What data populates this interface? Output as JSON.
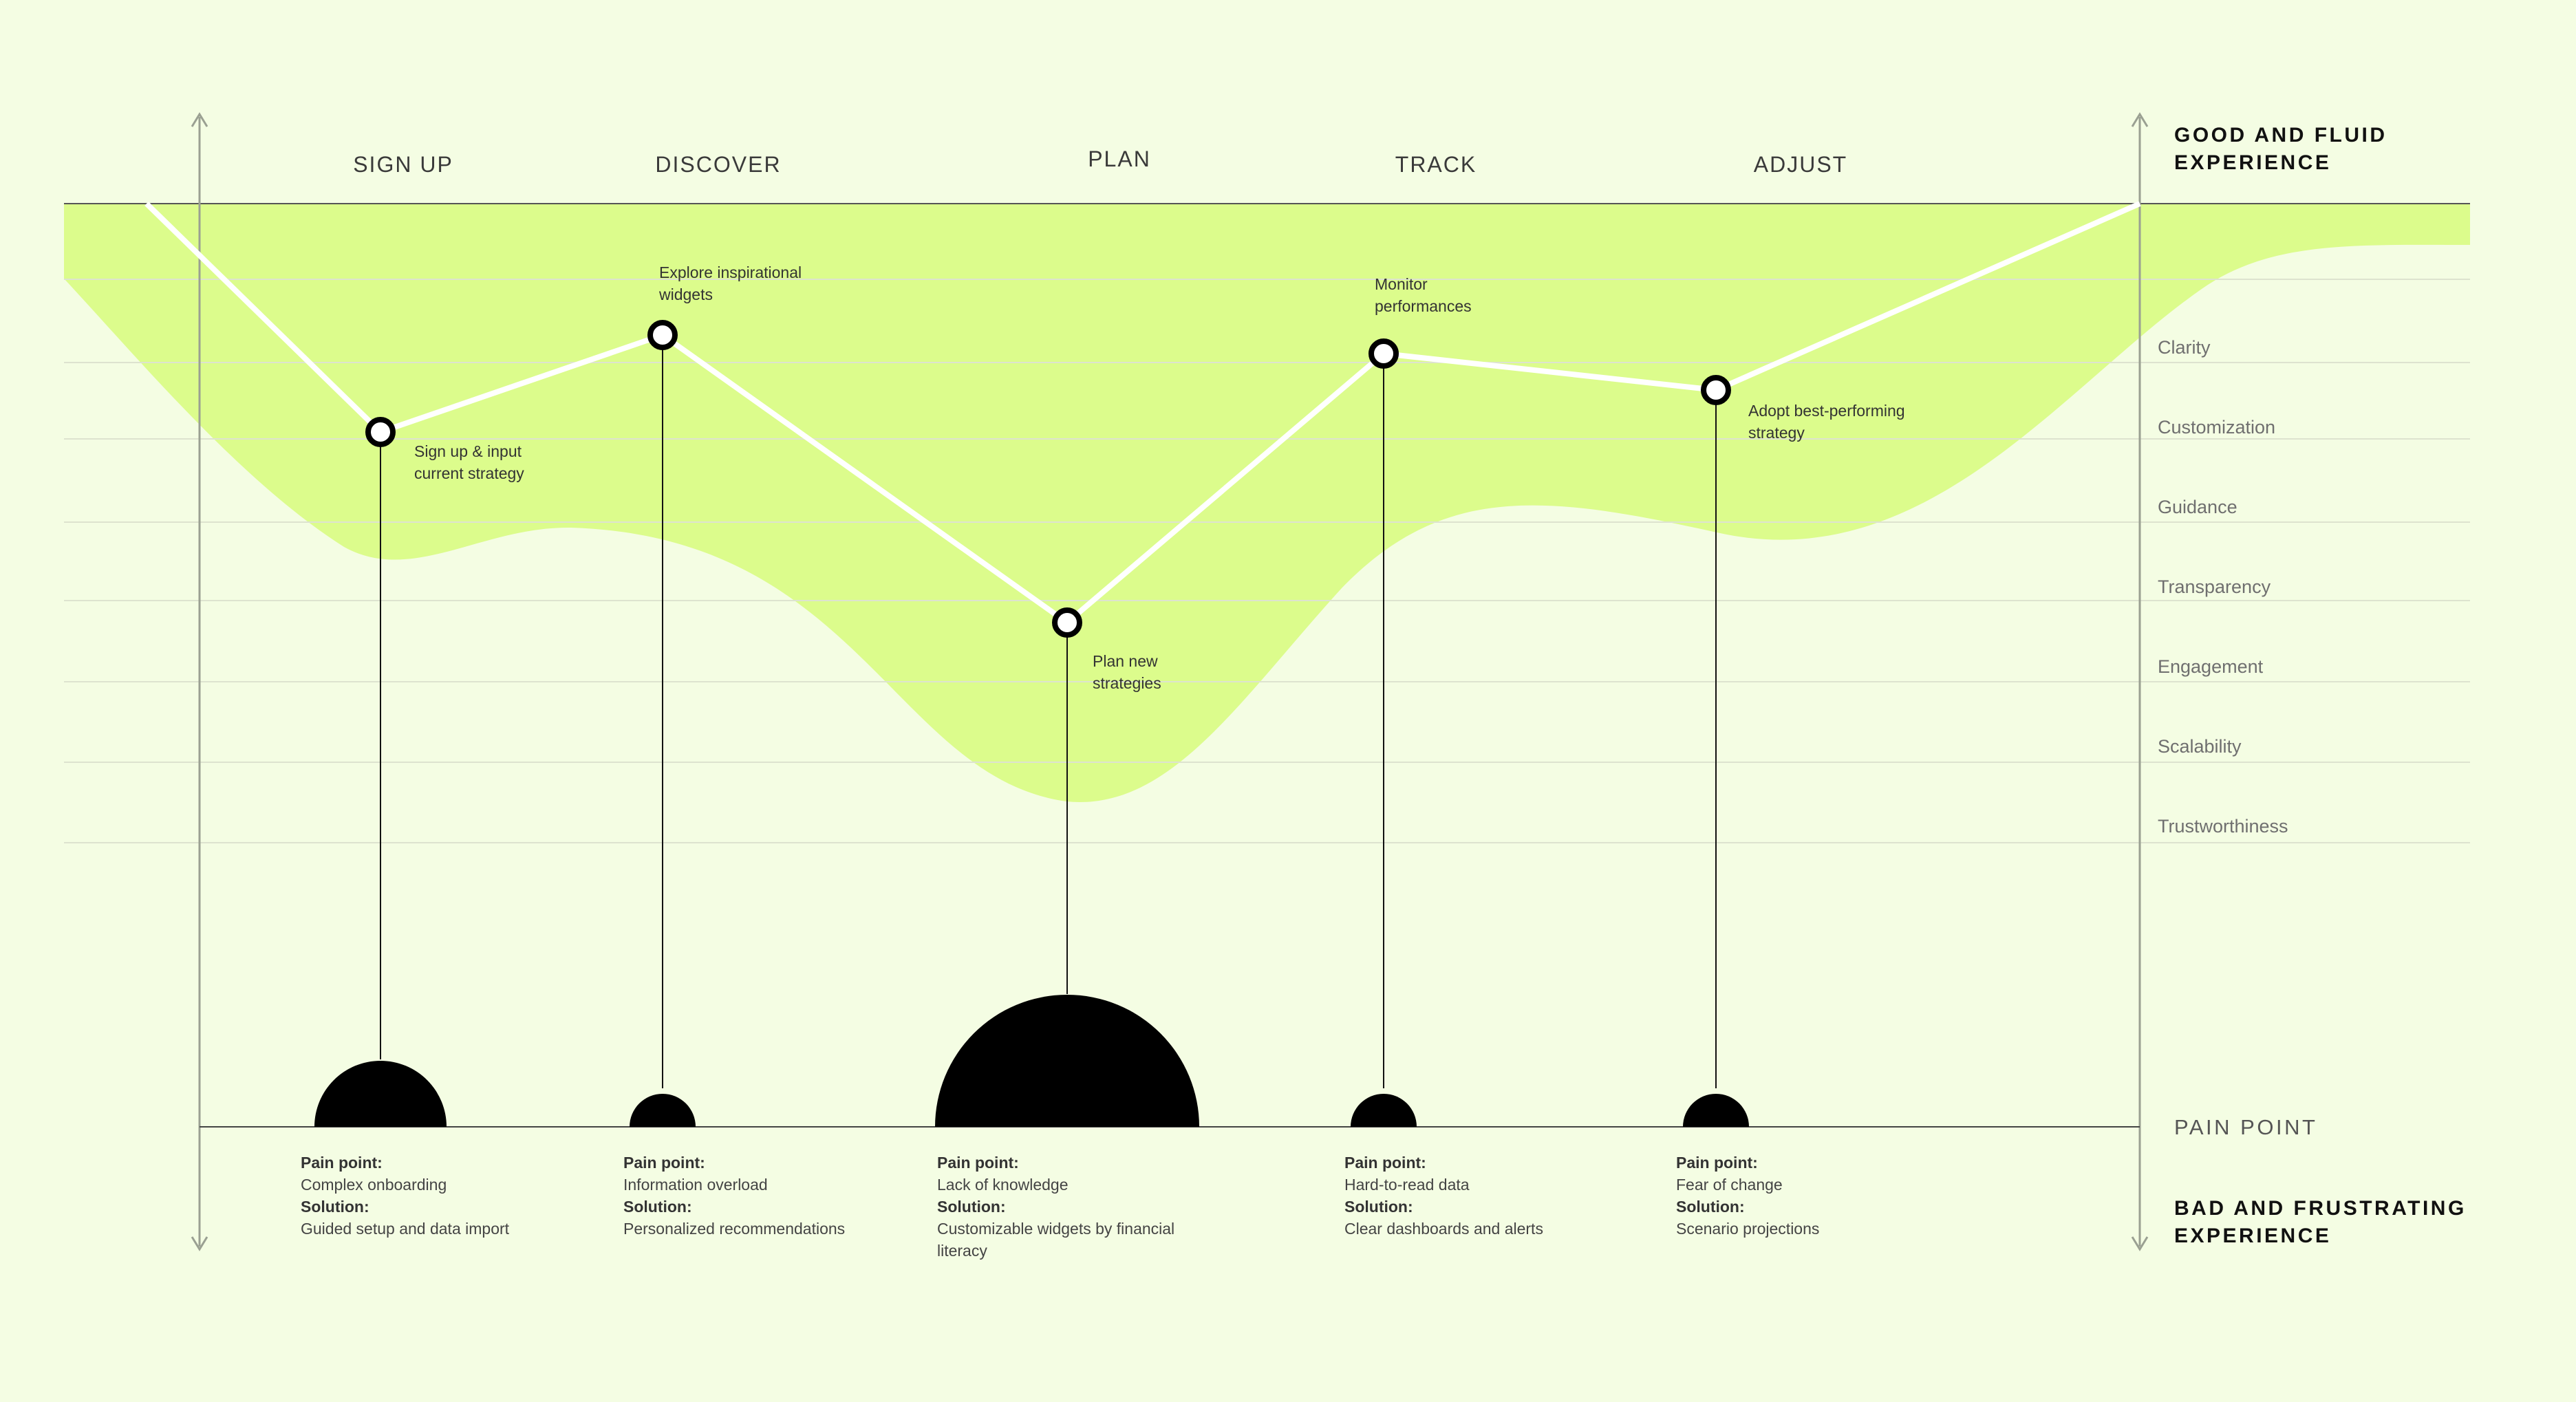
{
  "colors": {
    "background": "#f4fde3",
    "band": "#dcfc8c",
    "line": "#ffffff",
    "marker": "#000000",
    "axis": "#9aa092",
    "grid": "#dde3cf"
  },
  "stages": [
    {
      "title": "SIGN UP"
    },
    {
      "title": "DISCOVER"
    },
    {
      "title": "PLAN"
    },
    {
      "title": "TRACK"
    },
    {
      "title": "ADJUST"
    }
  ],
  "steps": [
    {
      "lines": [
        "Sign up & input",
        "current strategy"
      ]
    },
    {
      "lines": [
        "Explore inspirational",
        "widgets"
      ]
    },
    {
      "lines": [
        "Plan new",
        "strategies"
      ]
    },
    {
      "lines": [
        "Monitor",
        "performances"
      ]
    },
    {
      "lines": [
        "Adopt best-performing",
        "strategy"
      ]
    }
  ],
  "qualities": [
    "Clarity",
    "Customization",
    "Guidance",
    "Transparency",
    "Engagement",
    "Scalability",
    "Trustworthiness"
  ],
  "axis": {
    "top_lines": [
      "GOOD AND FLUID",
      "EXPERIENCE"
    ],
    "middle": "PAIN POINT",
    "bottom_lines": [
      "BAD AND FRUSTRATING",
      "EXPERIENCE"
    ]
  },
  "pain_points": [
    {
      "pain_label": "Pain point:",
      "pain_lines": [
        "Complex onboarding"
      ],
      "solution_label": "Solution:",
      "solution_lines": [
        "Guided setup and data import"
      ],
      "severity": 2
    },
    {
      "pain_label": "Pain point:",
      "pain_lines": [
        "Information overload"
      ],
      "solution_label": "Solution:",
      "solution_lines": [
        "Personalized recommendations"
      ],
      "severity": 1
    },
    {
      "pain_label": "Pain point:",
      "pain_lines": [
        "Lack of knowledge"
      ],
      "solution_label": "Solution:",
      "solution_lines": [
        "Customizable widgets by financial",
        "literacy"
      ],
      "severity": 4
    },
    {
      "pain_label": "Pain point:",
      "pain_lines": [
        "Hard-to-read data"
      ],
      "solution_label": "Solution:",
      "solution_lines": [
        "Clear dashboards and alerts"
      ],
      "severity": 1
    },
    {
      "pain_label": "Pain point:",
      "pain_lines": [
        "Fear of change"
      ],
      "solution_label": "Solution:",
      "solution_lines": [
        "Scenario projections"
      ],
      "severity": 1
    }
  ]
}
